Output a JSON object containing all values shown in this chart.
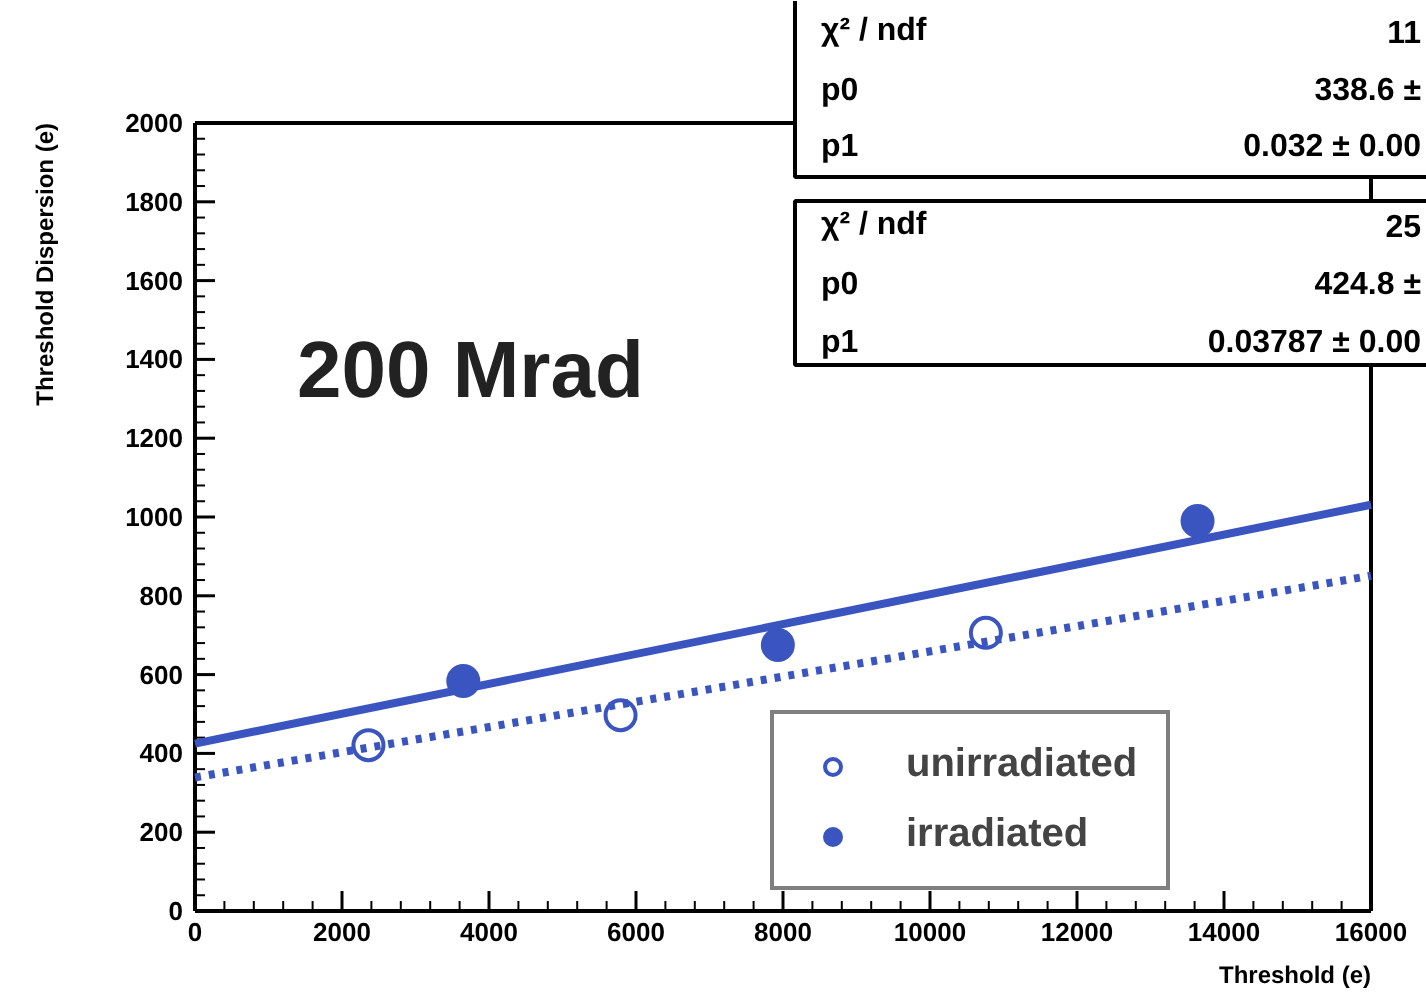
{
  "chart_data": {
    "type": "scatter",
    "xlabel": "Threshold (e)",
    "ylabel": "Threshold Dispersion (e)",
    "xlim": [
      0,
      16000
    ],
    "ylim": [
      0,
      2000
    ],
    "xticks": [
      0,
      2000,
      4000,
      6000,
      8000,
      10000,
      12000,
      14000,
      16000
    ],
    "yticks": [
      0,
      200,
      400,
      600,
      800,
      1000,
      1200,
      1400,
      1600,
      1800,
      2000
    ],
    "grid": false,
    "legend": "bottom right",
    "marker": "circle",
    "series": [
      {
        "name": "unirradiated",
        "color": "#3a55c0",
        "x": [
          2360,
          5790,
          10760
        ],
        "values": [
          421,
          497,
          706
        ]
      },
      {
        "name": "irradiated",
        "color": "#3a55c0",
        "x": [
          3650,
          7930,
          13640
        ],
        "values": [
          584,
          675,
          990
        ]
      },
      {
        "type": "line",
        "color": "#3a55c0",
        "line_style": "dotted",
        "marker": "none",
        "x": [
          0,
          16000
        ],
        "values": [
          339,
          851
        ]
      },
      {
        "type": "line",
        "color": "#3a55c0",
        "line_style": "solid",
        "marker": "none",
        "x": [
          0,
          16000
        ],
        "values": [
          425,
          1031
        ]
      }
    ],
    "annotations": [
      "200 Mrad",
      "χ² / ndf",
      "11",
      "p0",
      "338.6 ±",
      "p1",
      "0.032 ± 0.00",
      "χ² / ndf",
      "25",
      "p0",
      "424.8 ±",
      "p1",
      "0.03787 ± 0.00"
    ]
  }
}
